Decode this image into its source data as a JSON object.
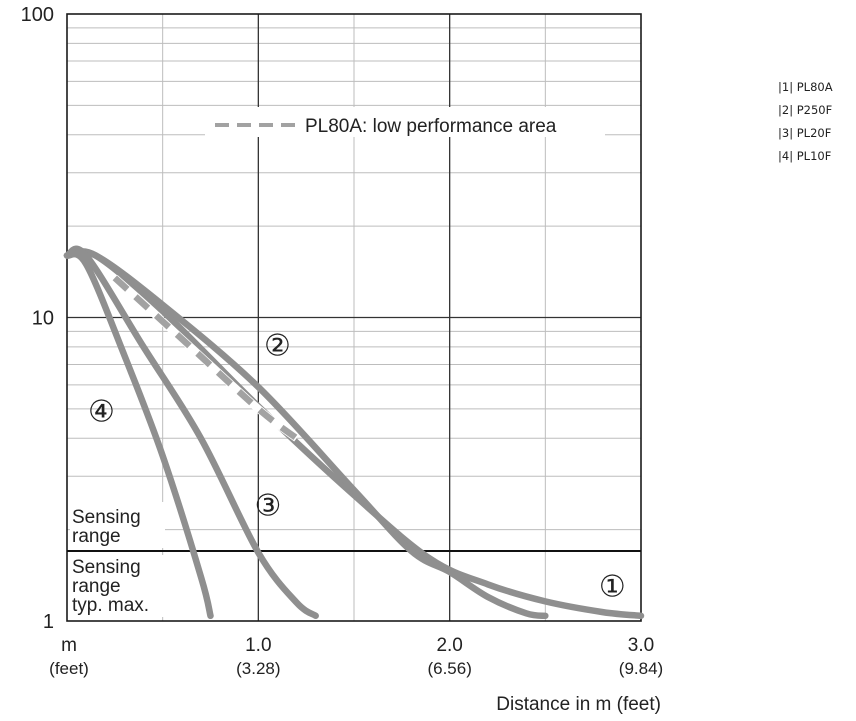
{
  "chart_data": {
    "type": "line",
    "yscale": "log",
    "ylim": [
      1,
      100
    ],
    "xlim": [
      0,
      3.0
    ],
    "y_ticks": [
      {
        "value": 1,
        "label": "1"
      },
      {
        "value": 10,
        "label": "10"
      },
      {
        "value": 100,
        "label": "100"
      }
    ],
    "x_ticks": [
      {
        "value": 0,
        "label": "m",
        "sublabel": "(feet)"
      },
      {
        "value": 1.0,
        "label": "1.0",
        "sublabel": "(3.28)"
      },
      {
        "value": 2.0,
        "label": "2.0",
        "sublabel": "(6.56)"
      },
      {
        "value": 3.0,
        "label": "3.0",
        "sublabel": "(9.84)"
      }
    ],
    "xlabel": "Distance in m (feet)",
    "ylabel": "",
    "grid": true,
    "annotations": {
      "low_performance": "PL80A: low performance area",
      "region_upper": [
        "Sensing",
        "range"
      ],
      "region_lower": [
        "Sensing",
        "range",
        "typ. max."
      ],
      "threshold_y": 1.7
    },
    "series": [
      {
        "id": "1",
        "marker": "①",
        "marker_at": [
          2.85,
          1.3
        ],
        "x": [
          0,
          0.15,
          0.5,
          1.0,
          1.5,
          1.9,
          2.2,
          2.5,
          2.8,
          3.0
        ],
        "y": [
          16,
          16,
          10.5,
          5.1,
          2.6,
          1.6,
          1.32,
          1.16,
          1.07,
          1.04
        ]
      },
      {
        "id": "2",
        "marker": "②",
        "marker_at": [
          1.1,
          8.1
        ],
        "x": [
          0,
          0.15,
          0.5,
          1.0,
          1.5,
          1.8,
          2.0,
          2.2,
          2.4,
          2.5
        ],
        "y": [
          16,
          16,
          11,
          5.9,
          2.7,
          1.7,
          1.45,
          1.2,
          1.06,
          1.04
        ]
      },
      {
        "id": "3",
        "marker": "③",
        "marker_at": [
          1.05,
          2.4
        ],
        "x": [
          0,
          0.1,
          0.4,
          0.7,
          1.0,
          1.2,
          1.3
        ],
        "y": [
          16,
          16,
          8,
          4,
          1.68,
          1.15,
          1.04
        ]
      },
      {
        "id": "4",
        "marker": "④",
        "marker_at": [
          0.18,
          4.9
        ],
        "x": [
          0,
          0.1,
          0.3,
          0.5,
          0.7,
          0.75
        ],
        "y": [
          16,
          15,
          7.5,
          3.5,
          1.4,
          1.04
        ]
      }
    ],
    "dashed_segment": {
      "x": [
        0.25,
        0.6,
        1.0,
        1.2
      ],
      "y": [
        13.5,
        8.5,
        5.0,
        4.0
      ]
    },
    "colors": {
      "curve": "#8f8f8f",
      "grid": "#bdbdbd",
      "axis": "#1a1a1a",
      "dashed": "#a2a2a2"
    }
  },
  "legend": [
    {
      "label": "|1| PL80A"
    },
    {
      "label": "|2| P250F"
    },
    {
      "label": "|3| PL20F"
    },
    {
      "label": "|4| PL10F"
    }
  ]
}
